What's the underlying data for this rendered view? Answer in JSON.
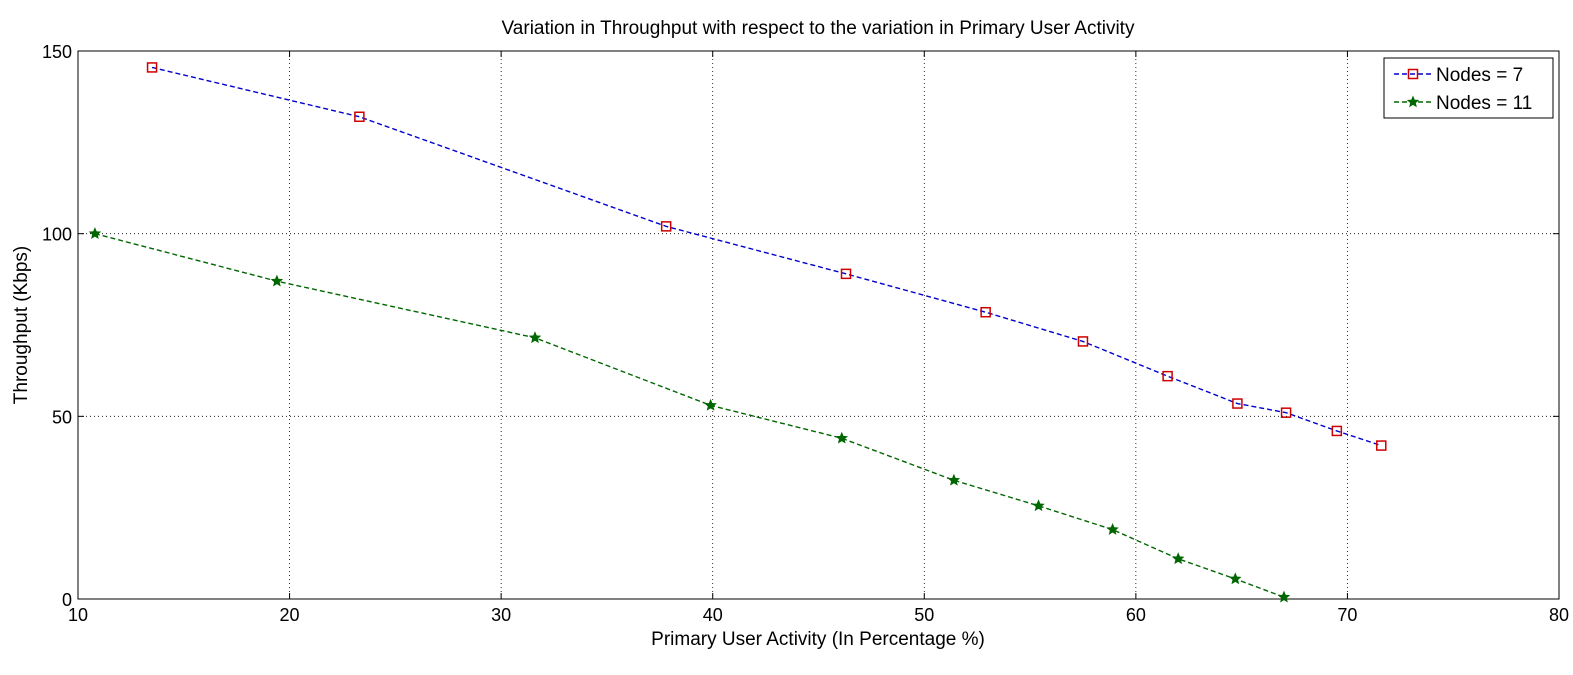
{
  "chart_data": {
    "type": "line",
    "title": "Variation in Throughput with respect to the variation in Primary User Activity",
    "xlabel": "Primary User Activity (In Percentage %)",
    "ylabel": "Throughput (Kbps)",
    "xlim": [
      10,
      80
    ],
    "ylim": [
      0,
      150
    ],
    "xticks": [
      10,
      20,
      30,
      40,
      50,
      60,
      70,
      80
    ],
    "yticks": [
      0,
      50,
      100,
      150
    ],
    "grid": true,
    "legend_position": "top-right",
    "series": [
      {
        "name": "Nodes = 7",
        "color": "#0000cc",
        "marker_color": "#cc0000",
        "marker": "square",
        "points": [
          {
            "x": 13.5,
            "y": 145.5
          },
          {
            "x": 23.3,
            "y": 132
          },
          {
            "x": 37.8,
            "y": 102
          },
          {
            "x": 46.3,
            "y": 89
          },
          {
            "x": 52.9,
            "y": 78.5
          },
          {
            "x": 57.5,
            "y": 70.5
          },
          {
            "x": 61.5,
            "y": 61
          },
          {
            "x": 64.8,
            "y": 53.5
          },
          {
            "x": 67.1,
            "y": 51
          },
          {
            "x": 69.5,
            "y": 46
          },
          {
            "x": 71.6,
            "y": 42
          }
        ]
      },
      {
        "name": "Nodes = 11",
        "color": "#006600",
        "marker_color": "#006600",
        "marker": "star",
        "points": [
          {
            "x": 10.8,
            "y": 100
          },
          {
            "x": 19.4,
            "y": 87
          },
          {
            "x": 31.6,
            "y": 71.5
          },
          {
            "x": 39.9,
            "y": 53
          },
          {
            "x": 46.1,
            "y": 44
          },
          {
            "x": 51.4,
            "y": 32.5
          },
          {
            "x": 55.4,
            "y": 25.5
          },
          {
            "x": 58.9,
            "y": 19
          },
          {
            "x": 62.0,
            "y": 11
          },
          {
            "x": 64.7,
            "y": 5.5
          },
          {
            "x": 67.0,
            "y": 0.5
          }
        ]
      }
    ]
  }
}
